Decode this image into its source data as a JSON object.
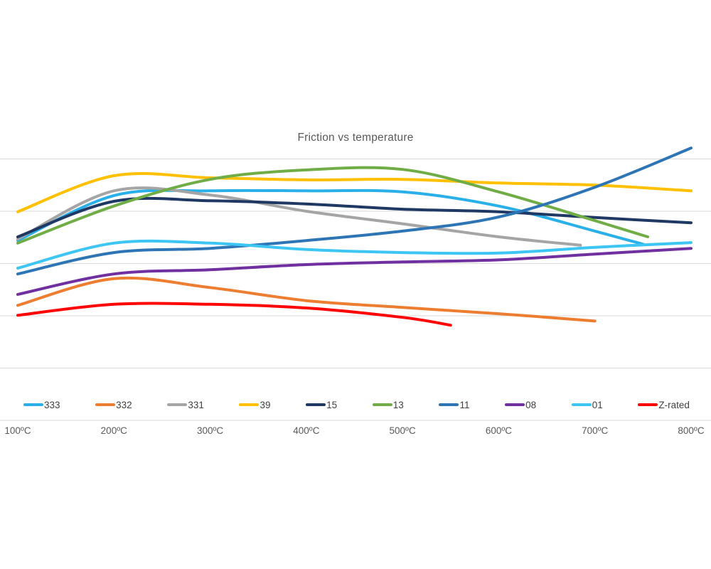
{
  "title": "Friction vs temperature",
  "axis": {
    "x_tick_labels": [
      "100ºC",
      "200ºC",
      "300ºC",
      "400ºC",
      "500ºC",
      "600ºC",
      "700ºC",
      "800ºC"
    ],
    "x_tick_temps": [
      100,
      200,
      300,
      400,
      500,
      600,
      700,
      800
    ]
  },
  "style_colors": {
    "gridline": "#D9D9D9",
    "axis_line": "#D9D9D9",
    "title_text": "#595959",
    "tick_text": "#595959",
    "legend_text": "#404040",
    "background": "#FFFFFF"
  },
  "chart_data": {
    "type": "line",
    "title": "Friction vs temperature",
    "xlabel": "",
    "ylabel": "",
    "x_unit": "ºC",
    "x_range": [
      100,
      800
    ],
    "smooth": true,
    "grid": true,
    "legend_position": "bottom",
    "y_axis_labeled": false,
    "y_units_note": "y-axis has no labels; values given in gridline units (0 = bottom gridline, 1 = one gridline spacing, 5 = top gridline)",
    "y_gridline_units": [
      0,
      1,
      2,
      3,
      4,
      5
    ],
    "series": [
      {
        "name": "333",
        "color": "#2AB0E8",
        "x": [
          100,
          200,
          300,
          400,
          500,
          600,
          700,
          750
        ],
        "y": [
          3.44,
          4.3,
          4.39,
          4.39,
          4.37,
          4.1,
          3.62,
          3.37
        ]
      },
      {
        "name": "332",
        "color": "#ED7D31",
        "x": [
          100,
          200,
          300,
          400,
          500,
          600,
          700
        ],
        "y": [
          2.2,
          2.71,
          2.54,
          2.29,
          2.16,
          2.04,
          1.9
        ]
      },
      {
        "name": "331",
        "color": "#A5A5A5",
        "x": [
          100,
          200,
          300,
          400,
          500,
          600,
          685
        ],
        "y": [
          3.47,
          4.39,
          4.31,
          4.0,
          3.76,
          3.51,
          3.35
        ]
      },
      {
        "name": "39",
        "color": "#FFC000",
        "x": [
          100,
          200,
          300,
          400,
          500,
          600,
          700,
          800
        ],
        "y": [
          3.99,
          4.68,
          4.64,
          4.6,
          4.61,
          4.54,
          4.5,
          4.39
        ]
      },
      {
        "name": "15",
        "color": "#1F3864",
        "x": [
          100,
          200,
          300,
          400,
          500,
          600,
          700,
          800
        ],
        "y": [
          3.51,
          4.19,
          4.2,
          4.14,
          4.04,
          3.99,
          3.88,
          3.78
        ]
      },
      {
        "name": "13",
        "color": "#70AD47",
        "x": [
          100,
          200,
          300,
          400,
          500,
          600,
          700,
          755
        ],
        "y": [
          3.39,
          4.1,
          4.61,
          4.79,
          4.8,
          4.37,
          3.82,
          3.51
        ]
      },
      {
        "name": "11",
        "color": "#2E75B6",
        "x": [
          100,
          200,
          300,
          400,
          500,
          600,
          700,
          800
        ],
        "y": [
          2.8,
          3.21,
          3.29,
          3.44,
          3.62,
          3.89,
          4.46,
          5.21
        ]
      },
      {
        "name": "08",
        "color": "#7030A0",
        "x": [
          100,
          200,
          300,
          400,
          500,
          600,
          700,
          800
        ],
        "y": [
          2.41,
          2.8,
          2.88,
          2.98,
          3.03,
          3.07,
          3.18,
          3.29
        ]
      },
      {
        "name": "01",
        "color": "#3DC5F4",
        "x": [
          100,
          200,
          300,
          400,
          500,
          600,
          700,
          800
        ],
        "y": [
          2.91,
          3.39,
          3.39,
          3.27,
          3.21,
          3.2,
          3.31,
          3.4
        ]
      },
      {
        "name": "Z-rated",
        "color": "#FF0000",
        "x": [
          100,
          200,
          300,
          400,
          500,
          550
        ],
        "y": [
          2.01,
          2.22,
          2.22,
          2.15,
          1.97,
          1.82
        ]
      }
    ]
  }
}
